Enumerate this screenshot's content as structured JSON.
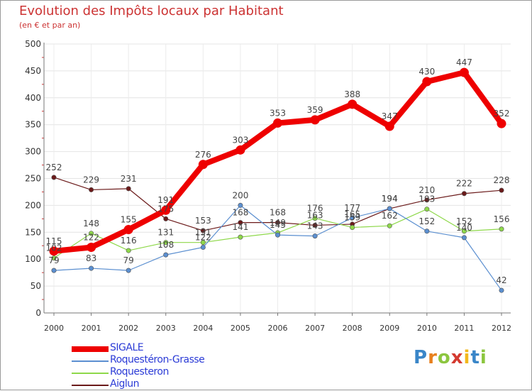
{
  "title": "Evolution des Impôts locaux par Habitant",
  "subtitle": "(en € et par an)",
  "brand": {
    "letters": [
      "P",
      "r",
      "o",
      "x",
      "i",
      "t",
      "i"
    ],
    "colors": [
      "#3a86c8",
      "#e8801e",
      "#8cc63f",
      "#d43a30",
      "#f2b81c",
      "#3a86c8",
      "#8cc63f"
    ]
  },
  "chart_data": {
    "type": "line",
    "title": "Evolution des Impôts locaux par Habitant",
    "subtitle": "(en € et par an)",
    "xlabel": "",
    "ylabel": "",
    "x": [
      "2000",
      "2001",
      "2002",
      "2003",
      "2004",
      "2005",
      "2006",
      "2007",
      "2008",
      "2009",
      "2010",
      "2011",
      "2012"
    ],
    "ylim": [
      0,
      500
    ],
    "yticks": [
      "0",
      "50",
      "100",
      "150",
      "200",
      "250",
      "300",
      "350",
      "400",
      "450",
      "500"
    ],
    "legend_position": "bottom-left",
    "series": [
      {
        "name": "SIGALE",
        "color": "#ee0000",
        "values": [
          115,
          122,
          155,
          191,
          276,
          303,
          353,
          359,
          388,
          347,
          430,
          447,
          352
        ],
        "labels": [
          "115",
          "122",
          "155",
          "191",
          "276",
          "303",
          "353",
          "359",
          "388",
          "347",
          "430",
          "447",
          "352"
        ]
      },
      {
        "name": "Roquestéron-Grasse",
        "color": "#5b8fd0",
        "values": [
          79,
          83,
          79,
          108,
          122,
          200,
          145,
          143,
          177,
          194,
          152,
          140,
          42
        ],
        "labels": [
          "79",
          "83",
          "79",
          "108",
          "122",
          "200",
          "145",
          "143",
          "177",
          "194",
          "152",
          "140",
          "42"
        ]
      },
      {
        "name": "Roquesteron",
        "color": "#8ed84a",
        "values": [
          102,
          148,
          116,
          131,
          131,
          141,
          149,
          176,
          159,
          162,
          193,
          152,
          156
        ],
        "labels": [
          "102",
          "148",
          "116",
          "131",
          "131",
          "141",
          "149",
          "176",
          "159",
          "162",
          "193",
          "152",
          "156"
        ]
      },
      {
        "name": "Aiglun",
        "color": "#6b1a1a",
        "values": [
          252,
          229,
          231,
          175,
          153,
          168,
          168,
          163,
          165,
          194,
          210,
          222,
          228
        ],
        "labels": [
          "252",
          "229",
          "231",
          "175",
          "153",
          "168",
          "168",
          "163",
          "165",
          "194",
          "210",
          "222",
          "228"
        ]
      }
    ]
  }
}
